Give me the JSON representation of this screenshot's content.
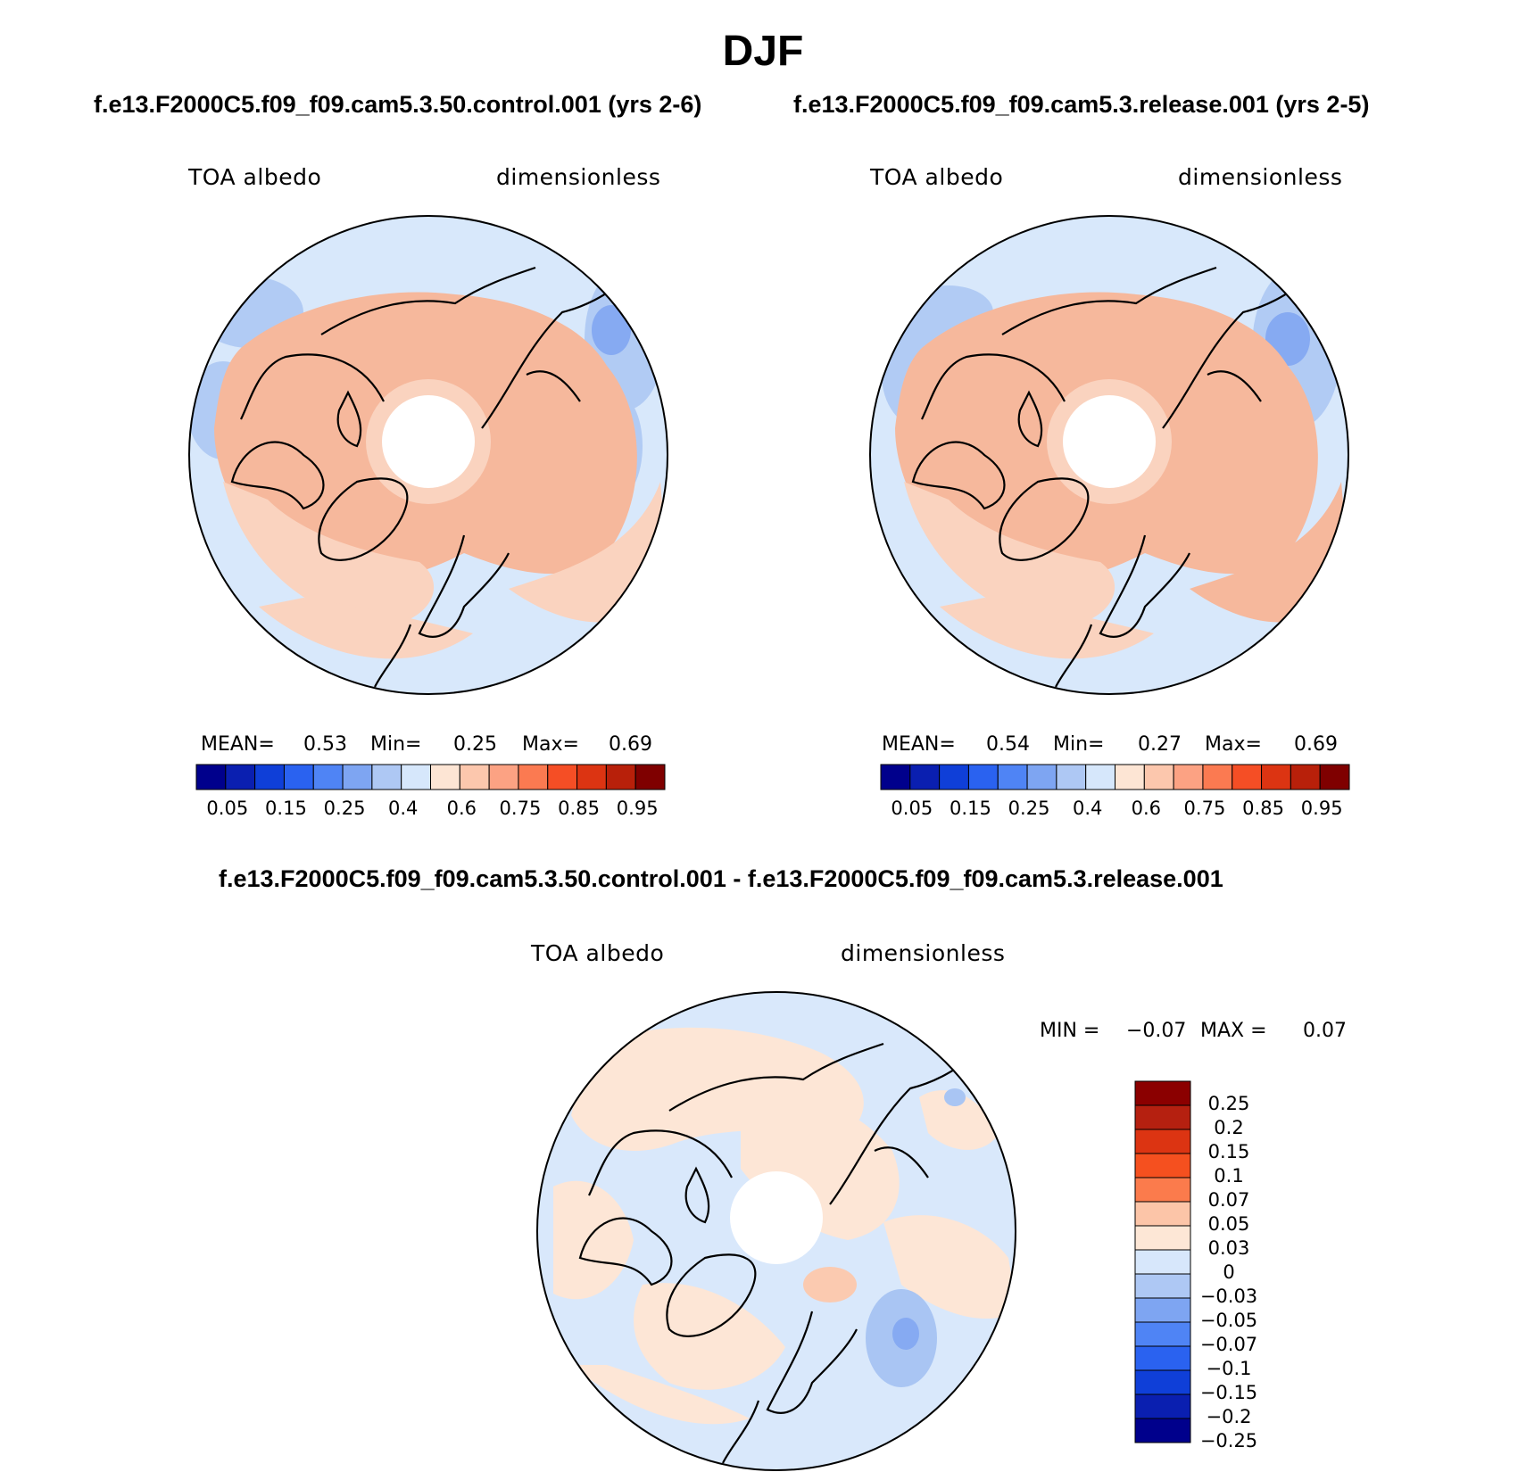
{
  "figure": {
    "season": "DJF"
  },
  "panels": [
    {
      "case": "f.e13.F2000C5.f09_f09.cam5.3.50.control.001 (yrs 2-6)",
      "left_label": "TOA albedo",
      "right_label": "dimensionless",
      "stats": {
        "mean_label": "MEAN=",
        "mean": "0.53",
        "min_label": "Min=",
        "min": "0.25",
        "max_label": "Max=",
        "max": "0.69"
      }
    },
    {
      "case": "f.e13.F2000C5.f09_f09.cam5.3.release.001 (yrs 2-5)",
      "left_label": "TOA albedo",
      "right_label": "dimensionless",
      "stats": {
        "mean_label": "MEAN=",
        "mean": "0.54",
        "min_label": "Min=",
        "min": "0.27",
        "max_label": "Max=",
        "max": "0.69"
      }
    },
    {
      "case": "f.e13.F2000C5.f09_f09.cam5.3.50.control.001 - f.e13.F2000C5.f09_f09.cam5.3.release.001",
      "left_label": "TOA albedo",
      "right_label": "dimensionless",
      "stats": {
        "min_label": "MIN =",
        "min": "−0.07",
        "max_label": "MAX =",
        "max": "0.07"
      }
    }
  ],
  "colorbars": {
    "absolute": {
      "colors": [
        "#00008c",
        "#0a1fb0",
        "#0f3fd8",
        "#2a62f0",
        "#4f84f5",
        "#7ea5f2",
        "#aec8f4",
        "#d6e7fb",
        "#fde5d4",
        "#fcc7ad",
        "#fca283",
        "#fb7a51",
        "#f54e25",
        "#dc3412",
        "#b8200a",
        "#7f0000"
      ],
      "ticks": [
        "0.05",
        "0.15",
        "0.25",
        "0.4",
        "0.6",
        "0.75",
        "0.85",
        "0.95"
      ]
    },
    "difference": {
      "colors_top_to_bottom": [
        "#8b0000",
        "#b52010",
        "#dc3412",
        "#f5501f",
        "#fb7b4c",
        "#fcc5a8",
        "#fde7d6",
        "#d7e7fb",
        "#aec8f4",
        "#7ea5f2",
        "#4f84f5",
        "#2a62f0",
        "#0f3fd8",
        "#0a1fb0",
        "#00008c"
      ],
      "ticks_top_to_bottom": [
        "0.25",
        "0.2",
        "0.15",
        "0.1",
        "0.07",
        "0.05",
        "0.03",
        "0",
        "−0.03",
        "−0.05",
        "−0.07",
        "−0.1",
        "−0.15",
        "−0.2",
        "−0.25"
      ]
    }
  },
  "map_palette": {
    "ocean_low": "#d8e8fb",
    "ocean_mid": "#b1cbf4",
    "ocean_blue": "#86aaf2",
    "land_high": "#f6b89c",
    "land_mid": "#fad3bf",
    "diff_pos": "#fde6d6",
    "diff_pos2": "#fbcab0",
    "diff_neg": "#d9e8fb",
    "diff_neg2": "#a9c5f3",
    "pole_hole": "#ffffff",
    "coast": "#000000"
  }
}
